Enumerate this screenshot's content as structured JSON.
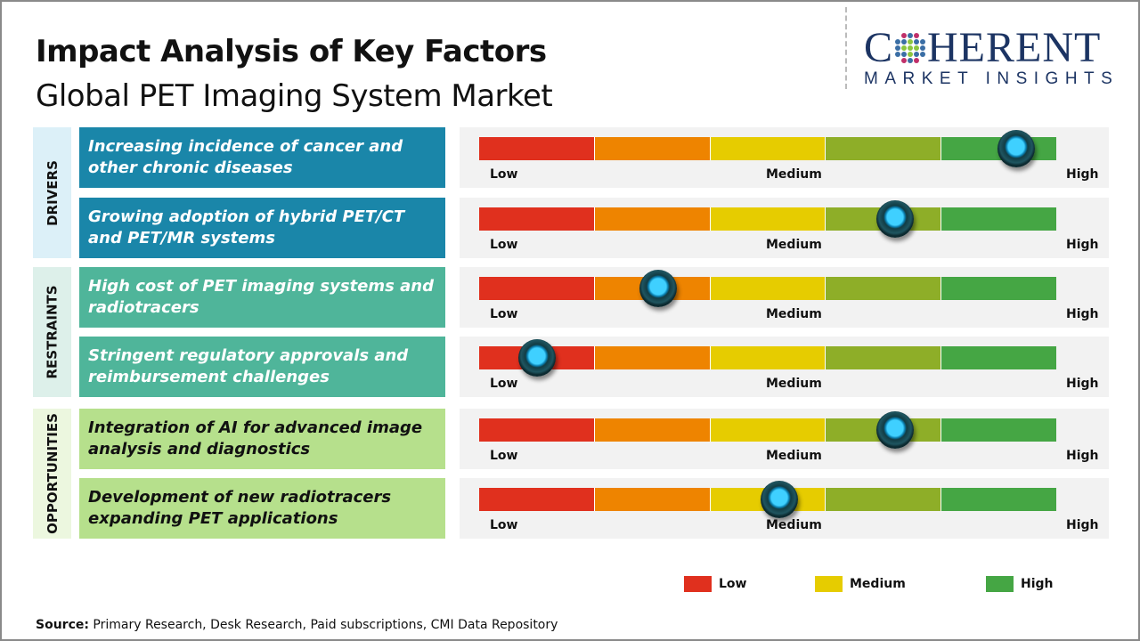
{
  "header": {
    "title": "Impact Analysis of Key Factors",
    "subtitle": "Global PET Imaging System Market"
  },
  "logo": {
    "main_before": "C",
    "main_after": "HERENT",
    "sub": "MARKET INSIGHTS"
  },
  "categories": [
    {
      "label": "DRIVERS",
      "color": "#1a86a9",
      "bg": "#dcf0f8"
    },
    {
      "label": "RESTRAINTS",
      "color": "#4fb59a",
      "bg": "#ddf0ea"
    },
    {
      "label": "OPPORTUNITIES",
      "color": "#b6e08c",
      "bg": "#ecf7df"
    }
  ],
  "factors": [
    {
      "text": "Increasing incidence of cancer and other chronic diseases",
      "category": "DRIVERS",
      "impact": 0.93
    },
    {
      "text": "Growing adoption of hybrid PET/CT and PET/MR systems",
      "category": "DRIVERS",
      "impact": 0.72
    },
    {
      "text": "High cost of PET imaging systems and radiotracers",
      "category": "RESTRAINTS",
      "impact": 0.31
    },
    {
      "text": "Stringent regulatory approvals and reimbursement challenges",
      "category": "RESTRAINTS",
      "impact": 0.1
    },
    {
      "text": "Integration of AI for advanced image analysis and diagnostics",
      "category": "OPPORTUNITIES",
      "impact": 0.72
    },
    {
      "text": "Development of new radiotracers expanding PET applications",
      "category": "OPPORTUNITIES",
      "impact": 0.52
    }
  ],
  "scale": {
    "low": "Low",
    "medium": "Medium",
    "high": "High",
    "segment_colors": [
      "#e0301e",
      "#ee8400",
      "#e6cc00",
      "#8eae28",
      "#45a644"
    ]
  },
  "legend": [
    {
      "label": "Low",
      "color": "#e0301e"
    },
    {
      "label": "Medium",
      "color": "#e6cc00"
    },
    {
      "label": "High",
      "color": "#45a644"
    }
  ],
  "source": {
    "label": "Source:",
    "text": " Primary Research, Desk Research, Paid subscriptions, CMI Data Repository"
  }
}
